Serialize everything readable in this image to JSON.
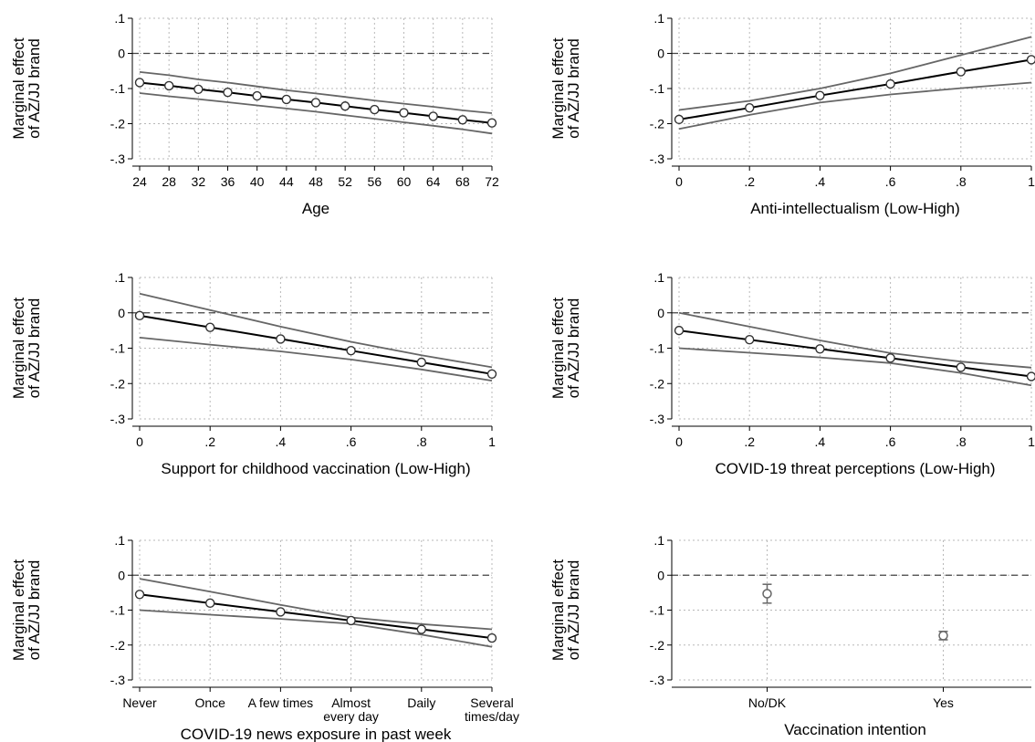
{
  "figure": {
    "ylabel_line1": "Marginal effect",
    "ylabel_line2": "of AZ/JJ brand"
  },
  "colors": {
    "estimate": "#000000",
    "ci": "#666666",
    "grid": "#b8b8b8",
    "reference": "#444444",
    "axis": "#000000"
  },
  "chart_data": [
    {
      "type": "line",
      "xlabel": "Age",
      "x": [
        24,
        28,
        32,
        36,
        40,
        44,
        48,
        52,
        56,
        60,
        64,
        68,
        72
      ],
      "xticks": [
        "24",
        "28",
        "32",
        "36",
        "40",
        "44",
        "48",
        "52",
        "56",
        "60",
        "64",
        "68",
        "72"
      ],
      "series": [
        {
          "values": [
            -0.083,
            -0.092,
            -0.102,
            -0.111,
            -0.121,
            -0.131,
            -0.14,
            -0.15,
            -0.16,
            -0.169,
            -0.179,
            -0.189,
            -0.198
          ]
        }
      ],
      "ci_lower": [
        -0.113,
        -0.122,
        -0.13,
        -0.139,
        -0.148,
        -0.157,
        -0.166,
        -0.176,
        -0.186,
        -0.196,
        -0.206,
        -0.216,
        -0.228
      ],
      "ci_upper": [
        -0.053,
        -0.062,
        -0.074,
        -0.083,
        -0.094,
        -0.105,
        -0.114,
        -0.124,
        -0.134,
        -0.143,
        -0.152,
        -0.162,
        -0.17
      ],
      "ylim": [
        -0.3,
        0.1
      ],
      "yticks": [
        ".1",
        "0",
        "-.1",
        "-.2",
        "-.3"
      ],
      "reference_line": 0,
      "grid": true
    },
    {
      "type": "line",
      "xlabel": "Anti-intellectualism (Low-High)",
      "x": [
        0,
        0.2,
        0.4,
        0.6,
        0.8,
        1
      ],
      "xticks": [
        "0",
        ".2",
        ".4",
        ".6",
        ".8",
        "1"
      ],
      "series": [
        {
          "values": [
            -0.188,
            -0.155,
            -0.12,
            -0.087,
            -0.052,
            -0.018
          ]
        }
      ],
      "ci_lower": [
        -0.215,
        -0.175,
        -0.14,
        -0.117,
        -0.099,
        -0.083
      ],
      "ci_upper": [
        -0.161,
        -0.135,
        -0.1,
        -0.057,
        -0.005,
        0.047
      ],
      "ylim": [
        -0.3,
        0.1
      ],
      "yticks": [
        ".1",
        "0",
        "-.1",
        "-.2",
        "-.3"
      ],
      "reference_line": 0,
      "grid": true
    },
    {
      "type": "line",
      "xlabel": "Support for childhood vaccination (Low-High)",
      "x": [
        0,
        0.2,
        0.4,
        0.6,
        0.8,
        1
      ],
      "xticks": [
        "0",
        ".2",
        ".4",
        ".6",
        ".8",
        "1"
      ],
      "series": [
        {
          "values": [
            -0.008,
            -0.041,
            -0.074,
            -0.107,
            -0.14,
            -0.173
          ]
        }
      ],
      "ci_lower": [
        -0.07,
        -0.09,
        -0.109,
        -0.132,
        -0.16,
        -0.192
      ],
      "ci_upper": [
        0.054,
        0.008,
        -0.039,
        -0.082,
        -0.12,
        -0.154
      ],
      "ylim": [
        -0.3,
        0.1
      ],
      "yticks": [
        ".1",
        "0",
        "-.1",
        "-.2",
        "-.3"
      ],
      "reference_line": 0,
      "grid": true
    },
    {
      "type": "line",
      "xlabel": "COVID-19 threat perceptions (Low-High)",
      "x": [
        0,
        0.2,
        0.4,
        0.6,
        0.8,
        1
      ],
      "xticks": [
        "0",
        ".2",
        ".4",
        ".6",
        ".8",
        "1"
      ],
      "series": [
        {
          "values": [
            -0.05,
            -0.076,
            -0.102,
            -0.128,
            -0.154,
            -0.18
          ]
        }
      ],
      "ci_lower": [
        -0.1,
        -0.113,
        -0.126,
        -0.142,
        -0.17,
        -0.205
      ],
      "ci_upper": [
        0.0,
        -0.039,
        -0.078,
        -0.114,
        -0.138,
        -0.155
      ],
      "ylim": [
        -0.3,
        0.1
      ],
      "yticks": [
        ".1",
        "0",
        "-.1",
        "-.2",
        "-.3"
      ],
      "reference_line": 0,
      "grid": true
    },
    {
      "type": "line",
      "xlabel": "COVID-19 news exposure in past week",
      "x": [
        1,
        2,
        3,
        4,
        5,
        6
      ],
      "xticks": [
        "Never",
        "Once",
        "A few times",
        "Almost\nevery day",
        "Daily",
        "Several\ntimes/day"
      ],
      "series": [
        {
          "values": [
            -0.055,
            -0.08,
            -0.105,
            -0.13,
            -0.155,
            -0.18
          ]
        }
      ],
      "ci_lower": [
        -0.1,
        -0.113,
        -0.125,
        -0.139,
        -0.17,
        -0.205
      ],
      "ci_upper": [
        -0.01,
        -0.047,
        -0.085,
        -0.121,
        -0.14,
        -0.155
      ],
      "ylim": [
        -0.3,
        0.1
      ],
      "yticks": [
        ".1",
        "0",
        "-.1",
        "-.2",
        "-.3"
      ],
      "reference_line": 0,
      "grid": true
    },
    {
      "type": "scatter",
      "xlabel": "Vaccination intention",
      "categories": [
        "No/DK",
        "Yes"
      ],
      "xticks": [
        "No/DK",
        "Yes"
      ],
      "series": [
        {
          "values": [
            -0.053,
            -0.173
          ]
        }
      ],
      "ci_lower": [
        -0.08,
        -0.185
      ],
      "ci_upper": [
        -0.026,
        -0.161
      ],
      "ylim": [
        -0.3,
        0.1
      ],
      "yticks": [
        ".1",
        "0",
        "-.1",
        "-.2",
        "-.3"
      ],
      "reference_line": 0,
      "grid": true
    }
  ]
}
